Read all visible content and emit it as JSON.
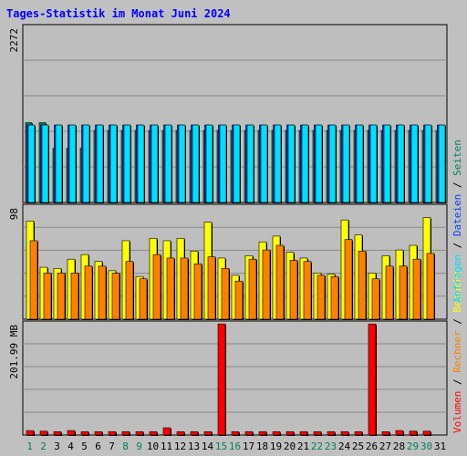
{
  "title": "Tages-Statistik im Monat Juni 2024",
  "colors": {
    "background": "#c0c0c0",
    "panel": "#bebebe",
    "title": "#0000ff",
    "anfragen": "#00805c",
    "dateien": "#0040ff",
    "seiten": "#00e0ff",
    "besuche": "#ffff00",
    "rechner": "#ff8000",
    "volumen": "#ff0000",
    "weekday_label": "#000000",
    "weekend_label": "#00805c"
  },
  "chart_data": [
    {
      "type": "bar",
      "panel": "top",
      "y_tick_label": "2272",
      "ylim": [
        0,
        2272
      ],
      "grid": true,
      "categories": [
        "1",
        "2",
        "3",
        "4",
        "5",
        "6",
        "7",
        "8",
        "9",
        "10",
        "11",
        "12",
        "13",
        "14",
        "15",
        "16",
        "17",
        "18",
        "19",
        "20",
        "21",
        "22",
        "23",
        "24",
        "25",
        "26",
        "27",
        "28",
        "29",
        "30",
        "31"
      ],
      "series": [
        {
          "name": "Anfragen",
          "values": [
            1030,
            1030,
            700,
            700,
            700,
            930,
            930,
            930,
            930,
            930,
            930,
            930,
            930,
            930,
            930,
            930,
            930,
            930,
            930,
            930,
            930,
            930,
            930,
            930,
            930,
            930,
            930,
            930,
            930,
            930,
            930
          ]
        },
        {
          "name": "Dateien",
          "values": [
            1000,
            1000,
            1000,
            1000,
            1000,
            1000,
            1000,
            1000,
            1000,
            1000,
            1000,
            1000,
            1000,
            1000,
            1000,
            1000,
            1000,
            1000,
            1000,
            1000,
            1000,
            1000,
            1000,
            1000,
            1000,
            1000,
            1000,
            1000,
            1000,
            1000,
            1000
          ]
        },
        {
          "name": "Seiten",
          "values": [
            1000,
            1000,
            1000,
            1000,
            1000,
            1000,
            1000,
            1000,
            1000,
            1000,
            1000,
            1000,
            1000,
            1000,
            1000,
            1000,
            1000,
            1000,
            1000,
            1000,
            1000,
            1000,
            1000,
            1000,
            1000,
            1000,
            1000,
            1000,
            1000,
            1000,
            1000
          ]
        }
      ]
    },
    {
      "type": "bar",
      "panel": "middle",
      "y_tick_label": "98",
      "ylim": [
        0,
        98
      ],
      "grid": true,
      "categories": [
        "1",
        "2",
        "3",
        "4",
        "5",
        "6",
        "7",
        "8",
        "9",
        "10",
        "11",
        "12",
        "13",
        "14",
        "15",
        "16",
        "17",
        "18",
        "19",
        "20",
        "21",
        "22",
        "23",
        "24",
        "25",
        "26",
        "27",
        "28",
        "29",
        "30",
        "31"
      ],
      "series": [
        {
          "name": "Besuche",
          "values": [
            85,
            45,
            44,
            52,
            56,
            50,
            42,
            68,
            37,
            70,
            68,
            70,
            59,
            84,
            53,
            38,
            55,
            67,
            72,
            58,
            53,
            40,
            39,
            86,
            73,
            40,
            55,
            60,
            64,
            88,
            0
          ]
        },
        {
          "name": "Rechner",
          "values": [
            68,
            40,
            40,
            40,
            46,
            46,
            40,
            50,
            35,
            56,
            53,
            53,
            48,
            54,
            44,
            33,
            52,
            60,
            64,
            51,
            50,
            38,
            37,
            69,
            59,
            35,
            46,
            46,
            52,
            57,
            0
          ]
        }
      ]
    },
    {
      "type": "bar",
      "panel": "bottom",
      "y_tick_label": "201.99 MB",
      "ylim": [
        0,
        201.99
      ],
      "grid": true,
      "categories": [
        "1",
        "2",
        "3",
        "4",
        "5",
        "6",
        "7",
        "8",
        "9",
        "10",
        "11",
        "12",
        "13",
        "14",
        "15",
        "16",
        "17",
        "18",
        "19",
        "20",
        "21",
        "22",
        "23",
        "24",
        "25",
        "26",
        "27",
        "28",
        "29",
        "30",
        "31"
      ],
      "series": [
        {
          "name": "Volumen",
          "values": [
            8,
            7,
            6,
            8,
            6,
            6,
            6,
            6,
            6,
            6,
            13,
            6,
            6,
            6,
            200,
            6,
            6,
            6,
            6,
            6,
            6,
            6,
            6,
            6,
            6,
            200,
            6,
            8,
            7,
            7,
            0
          ]
        }
      ]
    }
  ],
  "legend_right_top": [
    "Anfragen",
    "Dateien",
    "Seiten"
  ],
  "legend_right_bottom": [
    "Volumen",
    "Rechner",
    "Besuche"
  ],
  "weekend_days": [
    "1",
    "2",
    "8",
    "9",
    "15",
    "16",
    "22",
    "23",
    "29",
    "30"
  ]
}
